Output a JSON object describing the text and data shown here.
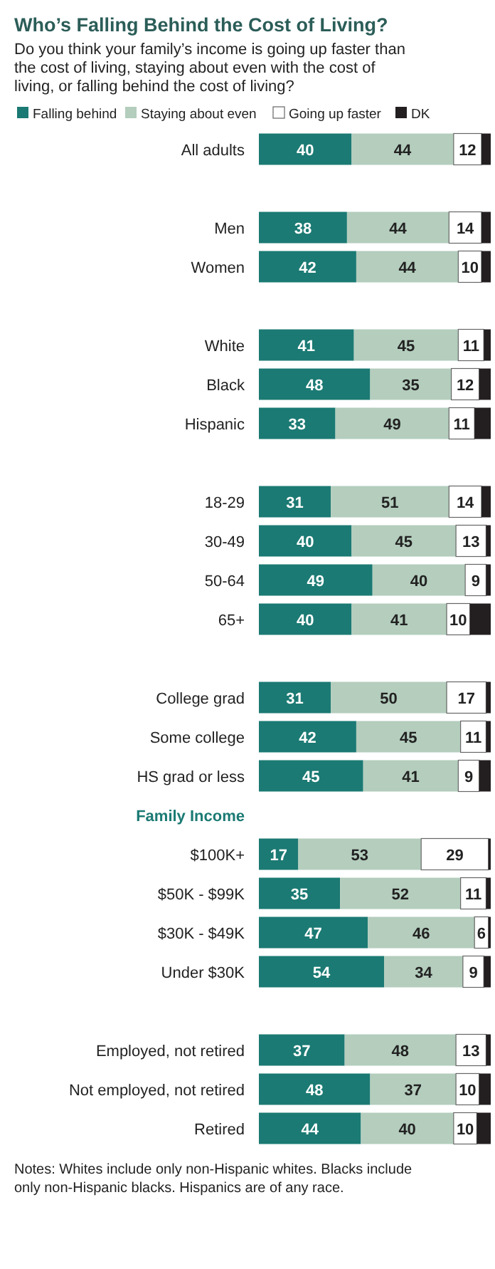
{
  "chart_data": {
    "type": "bar",
    "orientation": "horizontal",
    "stacked": true,
    "legend": "top left",
    "title": "Who’s Falling Behind the Cost of Living?",
    "subtitle": "Do you think your family’s income is going up faster than the cost of living, staying about even with the cost of living, or falling behind the cost of living?",
    "annotations": [
      "Notes: Whites include only non-Hispanic whites. Blacks include only non-Hispanic blacks. Hispanics are of any race."
    ],
    "categories": [
      "All adults",
      null,
      "Men",
      "Women",
      null,
      "White",
      "Black",
      "Hispanic",
      null,
      "18-29",
      "30-49",
      "50-64",
      "65+",
      null,
      "College grad",
      "Some college",
      "HS grad or less",
      "Family Income",
      "$100K+",
      "$50K - $99K",
      "$30K - $49K",
      "Under $30K",
      null,
      "Employed, not retired",
      "Not employed, not retired",
      "Retired"
    ],
    "series": [
      {
        "name": "Falling behind",
        "color": "#1b7a73",
        "values": [
          40,
          null,
          38,
          42,
          null,
          41,
          48,
          33,
          null,
          31,
          40,
          49,
          40,
          null,
          31,
          42,
          45,
          null,
          17,
          35,
          47,
          54,
          null,
          37,
          48,
          44
        ],
        "value_labels": [
          "40",
          null,
          "38",
          "42",
          null,
          "41",
          "48",
          "33",
          null,
          "31",
          "40",
          "49",
          "40",
          null,
          "31",
          "42",
          "45",
          null,
          "17",
          "35",
          "47",
          "54",
          null,
          "37",
          "48",
          "44"
        ]
      },
      {
        "name": "Staying about even",
        "color": "#b4cdbd",
        "values": [
          44,
          null,
          44,
          44,
          null,
          45,
          35,
          49,
          null,
          51,
          45,
          40,
          41,
          null,
          50,
          45,
          41,
          null,
          53,
          52,
          46,
          34,
          null,
          48,
          37,
          40
        ],
        "value_labels": [
          "44",
          null,
          "44",
          "44",
          null,
          "45",
          "35",
          "49",
          null,
          "51",
          "45",
          "40",
          "41",
          null,
          "50",
          "45",
          "41",
          null,
          "53",
          "52",
          "46",
          "34",
          null,
          "48",
          "37",
          "40"
        ]
      },
      {
        "name": "Going up faster",
        "color": "#ffffff",
        "values": [
          12,
          null,
          14,
          10,
          null,
          11,
          12,
          11,
          null,
          14,
          13,
          9,
          10,
          null,
          17,
          11,
          9,
          null,
          29,
          11,
          6,
          9,
          null,
          13,
          10,
          10
        ],
        "value_labels": [
          "12",
          null,
          "14",
          "10",
          null,
          "11",
          "12",
          "11",
          null,
          "14",
          "13",
          "9",
          "10",
          null,
          "17",
          "11",
          "9",
          null,
          "29",
          "11",
          "6",
          "9",
          null,
          "13",
          "10",
          "10"
        ]
      },
      {
        "name": "DK",
        "color": "#231f20",
        "values": [
          4,
          null,
          4,
          4,
          null,
          3,
          5,
          7,
          null,
          4,
          2,
          2,
          9,
          null,
          2,
          2,
          5,
          null,
          1,
          2,
          1,
          3,
          null,
          2,
          5,
          6
        ]
      }
    ]
  }
}
